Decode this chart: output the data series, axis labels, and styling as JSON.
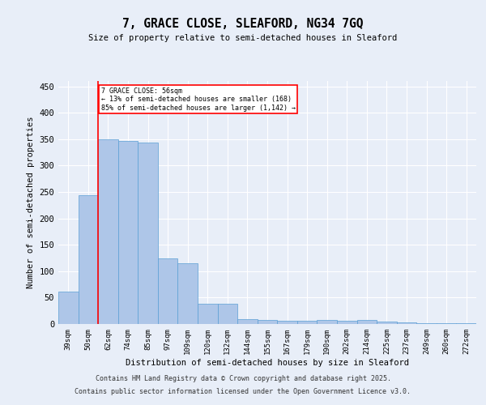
{
  "title": "7, GRACE CLOSE, SLEAFORD, NG34 7GQ",
  "subtitle": "Size of property relative to semi-detached houses in Sleaford",
  "xlabel": "Distribution of semi-detached houses by size in Sleaford",
  "ylabel": "Number of semi-detached properties",
  "categories": [
    "39sqm",
    "50sqm",
    "62sqm",
    "74sqm",
    "85sqm",
    "97sqm",
    "109sqm",
    "120sqm",
    "132sqm",
    "144sqm",
    "155sqm",
    "167sqm",
    "179sqm",
    "190sqm",
    "202sqm",
    "214sqm",
    "225sqm",
    "237sqm",
    "249sqm",
    "260sqm",
    "272sqm"
  ],
  "values": [
    61,
    244,
    349,
    346,
    343,
    124,
    115,
    39,
    39,
    9,
    8,
    6,
    6,
    7,
    6,
    8,
    5,
    3,
    2,
    2,
    2
  ],
  "bar_color": "#aec6e8",
  "bar_edge_color": "#5a9fd4",
  "marker_label": "7 GRACE CLOSE: 56sqm",
  "annotation_line1": "← 13% of semi-detached houses are smaller (168)",
  "annotation_line2": "85% of semi-detached houses are larger (1,142) →",
  "ylim": [
    0,
    460
  ],
  "yticks": [
    0,
    50,
    100,
    150,
    200,
    250,
    300,
    350,
    400,
    450
  ],
  "background_color": "#e8eef8",
  "plot_bg_color": "#e8eef8",
  "grid_color": "#ffffff",
  "footer_line1": "Contains HM Land Registry data © Crown copyright and database right 2025.",
  "footer_line2": "Contains public sector information licensed under the Open Government Licence v3.0."
}
